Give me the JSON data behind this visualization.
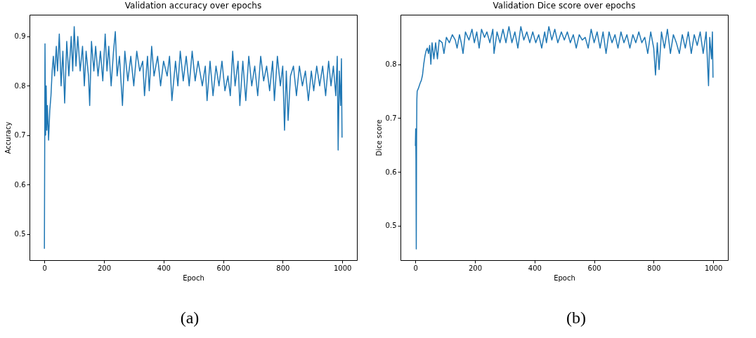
{
  "chart_data": [
    {
      "type": "line",
      "title": "Validation accuracy over epochs",
      "xlabel": "Epoch",
      "ylabel": "Accuracy",
      "color": "#1f77b4",
      "xlim": [
        -50,
        1049
      ],
      "ylim": [
        0.447,
        0.944
      ],
      "xticks": [
        0,
        200,
        400,
        600,
        800,
        1000
      ],
      "yticks": [
        0.5,
        0.6,
        0.7,
        0.8,
        0.9
      ],
      "annotations": [
        "(a)"
      ],
      "x": [
        0,
        2,
        4,
        6,
        8,
        10,
        14,
        18,
        22,
        26,
        30,
        34,
        40,
        44,
        50,
        56,
        62,
        68,
        75,
        82,
        90,
        95,
        100,
        106,
        112,
        120,
        128,
        134,
        140,
        148,
        152,
        158,
        166,
        172,
        180,
        188,
        196,
        204,
        210,
        216,
        224,
        232,
        238,
        244,
        252,
        262,
        270,
        280,
        290,
        300,
        310,
        320,
        330,
        336,
        346,
        352,
        360,
        368,
        380,
        390,
        400,
        412,
        420,
        428,
        440,
        448,
        456,
        466,
        476,
        486,
        496,
        506,
        516,
        530,
        540,
        546,
        556,
        566,
        576,
        586,
        596,
        606,
        616,
        624,
        632,
        640,
        650,
        656,
        666,
        676,
        686,
        696,
        706,
        716,
        726,
        736,
        746,
        756,
        766,
        772,
        782,
        792,
        800,
        806,
        812,
        818,
        826,
        836,
        846,
        856,
        866,
        876,
        886,
        896,
        904,
        914,
        924,
        934,
        944,
        954,
        962,
        970,
        978,
        983,
        986,
        990,
        994,
        997,
        999
      ],
      "values": [
        0.47,
        0.885,
        0.7,
        0.8,
        0.71,
        0.76,
        0.69,
        0.75,
        0.78,
        0.83,
        0.86,
        0.82,
        0.88,
        0.83,
        0.905,
        0.8,
        0.87,
        0.765,
        0.89,
        0.82,
        0.9,
        0.83,
        0.92,
        0.84,
        0.9,
        0.83,
        0.88,
        0.8,
        0.87,
        0.82,
        0.76,
        0.89,
        0.83,
        0.88,
        0.82,
        0.87,
        0.81,
        0.905,
        0.83,
        0.88,
        0.8,
        0.87,
        0.91,
        0.82,
        0.86,
        0.76,
        0.87,
        0.81,
        0.86,
        0.8,
        0.87,
        0.83,
        0.85,
        0.78,
        0.86,
        0.79,
        0.88,
        0.82,
        0.86,
        0.8,
        0.85,
        0.82,
        0.86,
        0.77,
        0.85,
        0.8,
        0.87,
        0.81,
        0.86,
        0.8,
        0.87,
        0.81,
        0.85,
        0.8,
        0.84,
        0.77,
        0.85,
        0.78,
        0.84,
        0.8,
        0.85,
        0.79,
        0.82,
        0.78,
        0.87,
        0.8,
        0.85,
        0.76,
        0.85,
        0.77,
        0.86,
        0.8,
        0.84,
        0.78,
        0.86,
        0.81,
        0.84,
        0.79,
        0.85,
        0.77,
        0.86,
        0.8,
        0.84,
        0.71,
        0.83,
        0.73,
        0.82,
        0.84,
        0.78,
        0.84,
        0.8,
        0.83,
        0.77,
        0.83,
        0.79,
        0.84,
        0.8,
        0.84,
        0.78,
        0.85,
        0.8,
        0.84,
        0.78,
        0.86,
        0.67,
        0.83,
        0.76,
        0.855,
        0.695
      ]
    },
    {
      "type": "line",
      "title": "Validation Dice score over epochs",
      "xlabel": "Epoch",
      "ylabel": "Dice score",
      "color": "#1f77b4",
      "xlim": [
        -50,
        1049
      ],
      "ylim": [
        0.436,
        0.892
      ],
      "xticks": [
        0,
        200,
        400,
        600,
        800,
        1000
      ],
      "yticks": [
        0.5,
        0.6,
        0.7,
        0.8
      ],
      "annotations": [
        "(b)"
      ],
      "x": [
        0,
        1,
        2,
        3,
        4,
        5,
        6,
        10,
        16,
        20,
        24,
        28,
        32,
        36,
        40,
        44,
        48,
        52,
        56,
        62,
        68,
        74,
        80,
        90,
        96,
        104,
        114,
        124,
        134,
        140,
        148,
        154,
        160,
        168,
        180,
        190,
        198,
        206,
        214,
        222,
        232,
        240,
        250,
        260,
        264,
        274,
        284,
        294,
        304,
        314,
        324,
        334,
        344,
        354,
        364,
        374,
        384,
        394,
        404,
        414,
        424,
        434,
        440,
        448,
        458,
        468,
        478,
        490,
        500,
        510,
        520,
        530,
        540,
        550,
        560,
        570,
        580,
        590,
        600,
        610,
        620,
        630,
        640,
        650,
        660,
        670,
        680,
        690,
        700,
        710,
        720,
        730,
        740,
        750,
        760,
        770,
        780,
        790,
        800,
        806,
        812,
        818,
        826,
        836,
        846,
        856,
        866,
        876,
        886,
        896,
        906,
        916,
        926,
        936,
        946,
        956,
        966,
        976,
        984,
        988,
        994,
        997,
        999
      ],
      "values": [
        0.648,
        0.68,
        0.62,
        0.457,
        0.66,
        0.735,
        0.75,
        0.755,
        0.765,
        0.77,
        0.78,
        0.8,
        0.815,
        0.825,
        0.83,
        0.82,
        0.835,
        0.8,
        0.84,
        0.81,
        0.84,
        0.81,
        0.845,
        0.84,
        0.82,
        0.85,
        0.84,
        0.855,
        0.845,
        0.83,
        0.855,
        0.84,
        0.82,
        0.86,
        0.845,
        0.865,
        0.84,
        0.86,
        0.83,
        0.865,
        0.85,
        0.86,
        0.84,
        0.865,
        0.82,
        0.86,
        0.84,
        0.865,
        0.84,
        0.87,
        0.84,
        0.86,
        0.83,
        0.87,
        0.845,
        0.86,
        0.84,
        0.86,
        0.84,
        0.855,
        0.83,
        0.86,
        0.84,
        0.87,
        0.845,
        0.865,
        0.84,
        0.86,
        0.845,
        0.86,
        0.84,
        0.855,
        0.83,
        0.855,
        0.845,
        0.85,
        0.83,
        0.865,
        0.84,
        0.86,
        0.83,
        0.86,
        0.82,
        0.86,
        0.84,
        0.855,
        0.83,
        0.86,
        0.84,
        0.855,
        0.83,
        0.855,
        0.84,
        0.86,
        0.84,
        0.85,
        0.82,
        0.86,
        0.83,
        0.78,
        0.84,
        0.79,
        0.86,
        0.83,
        0.865,
        0.82,
        0.855,
        0.84,
        0.82,
        0.855,
        0.83,
        0.86,
        0.82,
        0.855,
        0.835,
        0.86,
        0.82,
        0.86,
        0.76,
        0.85,
        0.81,
        0.86,
        0.775
      ]
    }
  ]
}
